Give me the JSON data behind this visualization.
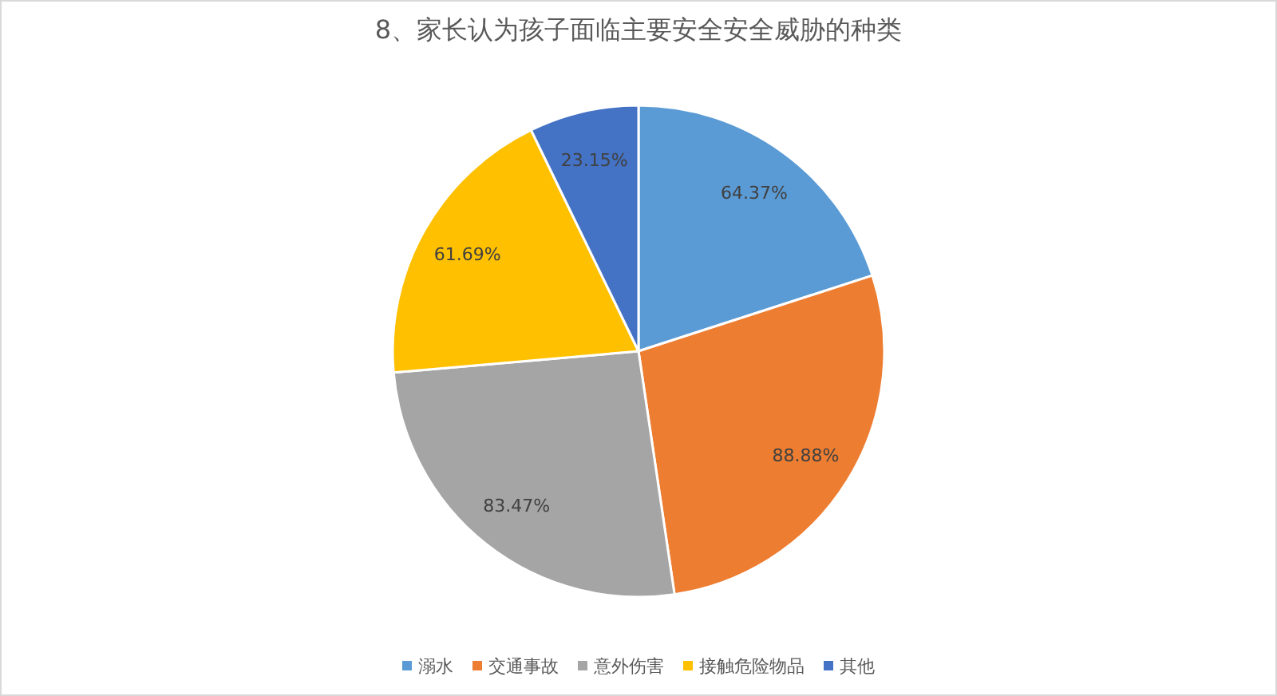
{
  "chart_data": {
    "type": "pie",
    "title": "8、家长认为孩子面临主要安全安全威胁的种类",
    "categories": [
      "溺水",
      "交通事故",
      "意外伤害",
      "接触危险物品",
      "其他"
    ],
    "values": [
      64.37,
      88.88,
      83.47,
      61.69,
      23.15
    ],
    "value_labels": [
      "64.37%",
      "88.88%",
      "83.47%",
      "61.69%",
      "23.15%"
    ],
    "colors": [
      "#5b9bd5",
      "#ed7d31",
      "#a5a5a5",
      "#ffc000",
      "#4472c4"
    ],
    "legend": "bottom"
  }
}
